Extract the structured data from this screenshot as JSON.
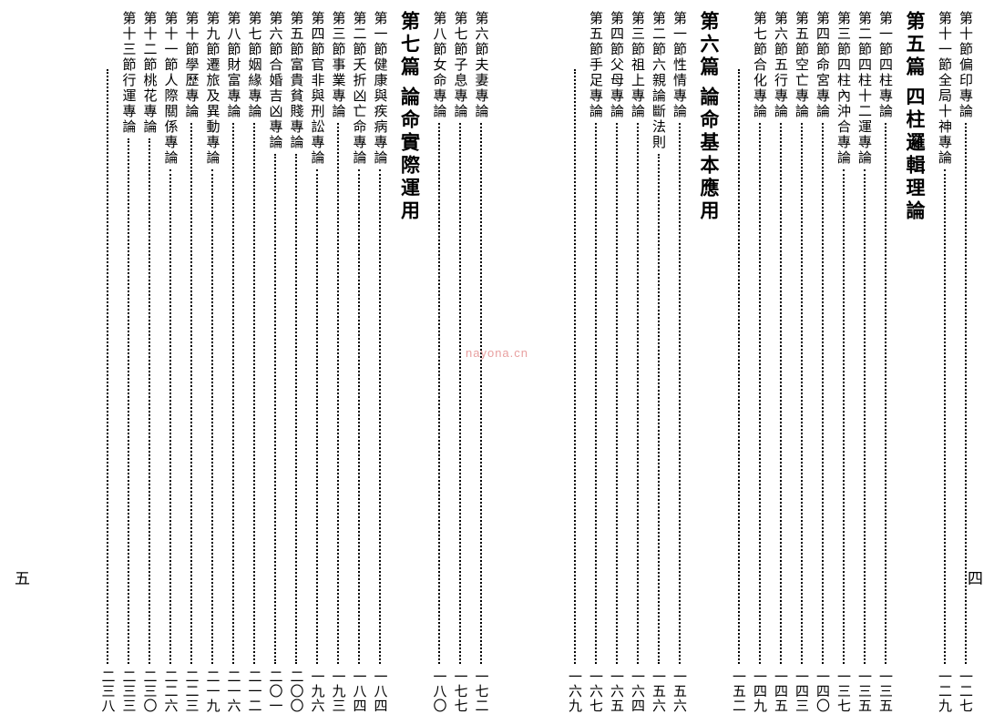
{
  "watermark": "nayona.cn",
  "right_page": {
    "folio": "四",
    "pre_items": [
      {
        "section": "第十節",
        "title": "偏印專論",
        "page": "一二七"
      },
      {
        "section": "第十一節",
        "title": "全局十神專論",
        "page": "一二九"
      }
    ],
    "chapter5": {
      "label": "第五篇",
      "title": "四柱邏輯理論"
    },
    "chapter5_items": [
      {
        "section": "第一節",
        "title": "四柱專論",
        "page": "一三五"
      },
      {
        "section": "第二節",
        "title": "四柱十二運專論",
        "page": "一三五"
      },
      {
        "section": "第三節",
        "title": "四柱內沖合專論",
        "page": "一三七"
      },
      {
        "section": "第四節",
        "title": "命宮專論",
        "page": "一四〇"
      },
      {
        "section": "第五節",
        "title": "空亡專論",
        "page": "一四三"
      },
      {
        "section": "第六節",
        "title": "五行專論",
        "page": "一四五"
      },
      {
        "section": "第七節",
        "title": "合化專論",
        "page": "一四九"
      },
      {
        "section": "",
        "title": "",
        "page": "一五二"
      }
    ],
    "chapter6": {
      "label": "第六篇",
      "title": "論命基本應用"
    },
    "chapter6_items": [
      {
        "section": "第一節",
        "title": "性情專論",
        "page": "一五六"
      },
      {
        "section": "第二節",
        "title": "六親論斷法則",
        "page": "一五六"
      },
      {
        "section": "第三節",
        "title": "祖上專論",
        "page": "一六四"
      },
      {
        "section": "第四節",
        "title": "父母專論",
        "page": "一六五"
      },
      {
        "section": "第五節",
        "title": "手足專論",
        "page": "一六七"
      },
      {
        "section": "",
        "title": "",
        "page": "一六九"
      }
    ]
  },
  "left_page": {
    "folio": "五",
    "pre_items": [
      {
        "section": "第六節",
        "title": "夫妻專論",
        "page": "一七二"
      },
      {
        "section": "第七節",
        "title": "子息專論",
        "page": "一七七"
      },
      {
        "section": "第八節",
        "title": "女命專論",
        "page": "一八〇"
      }
    ],
    "chapter7": {
      "label": "第七篇",
      "title": "論命實際運用"
    },
    "chapter7_items": [
      {
        "section": "第一節",
        "title": "健康與疾病專論",
        "page": "一八四"
      },
      {
        "section": "第二節",
        "title": "夭折凶亡命專論",
        "page": "一八四"
      },
      {
        "section": "第三節",
        "title": "事業專論",
        "page": "一九三"
      },
      {
        "section": "第四節",
        "title": "官非與刑訟專論",
        "page": "一九六"
      },
      {
        "section": "第五節",
        "title": "富貴貧賤專論",
        "page": "二〇〇"
      },
      {
        "section": "第六節",
        "title": "合婚吉凶專論",
        "page": "二〇一"
      },
      {
        "section": "第七節",
        "title": "姻緣專論",
        "page": "二一二"
      },
      {
        "section": "第八節",
        "title": "財富專論",
        "page": "二一六"
      },
      {
        "section": "第九節",
        "title": "遷旅及異動專論",
        "page": "二一九"
      },
      {
        "section": "第十節",
        "title": "學歷專論",
        "page": "二二三"
      },
      {
        "section": "第十一節",
        "title": "人際關係專論",
        "page": "二二六"
      },
      {
        "section": "第十二節",
        "title": "桃花專論",
        "page": "二三〇"
      },
      {
        "section": "第十三節",
        "title": "行運專論",
        "page": "二三三"
      },
      {
        "section": "",
        "title": "",
        "page": "二三八"
      }
    ]
  }
}
